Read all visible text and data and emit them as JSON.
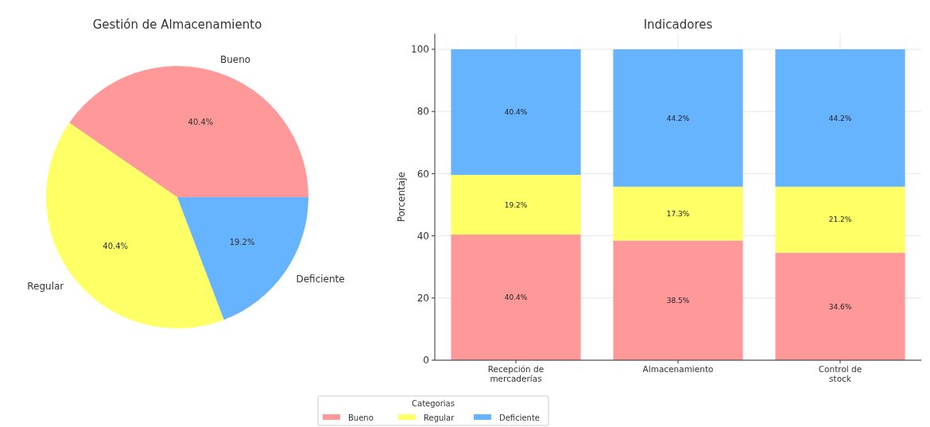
{
  "chart_data": [
    {
      "type": "pie",
      "title": "Gestión de Almacenamiento",
      "categories": [
        "Bueno",
        "Regular",
        "Deficiente"
      ],
      "values": [
        40.4,
        40.4,
        19.2
      ],
      "colors": [
        "#ff9999",
        "#ffff66",
        "#66b3ff"
      ],
      "value_labels": [
        "40.4%",
        "40.4%",
        "19.2%"
      ]
    },
    {
      "type": "bar",
      "title": "Indicadores",
      "ylabel": "Porcentaje",
      "legend_title": "Categorias",
      "legend": "bottom",
      "stacked": true,
      "grid": true,
      "categories": [
        "Recepción de\nmercaderías",
        "Almacenamiento",
        "Control de\nstock"
      ],
      "ylim": [
        0,
        105
      ],
      "yticks": [
        0,
        20,
        40,
        60,
        80,
        100
      ],
      "series": [
        {
          "name": "Bueno",
          "color": "#ff9999",
          "values": [
            40.4,
            38.5,
            34.6
          ],
          "value_labels": [
            "40.4%",
            "38.5%",
            "34.6%"
          ]
        },
        {
          "name": "Regular",
          "color": "#ffff66",
          "values": [
            19.2,
            17.3,
            21.2
          ],
          "value_labels": [
            "19.2%",
            "17.3%",
            "21.2%"
          ]
        },
        {
          "name": "Deficiente",
          "color": "#66b3ff",
          "values": [
            40.4,
            44.2,
            44.2
          ],
          "value_labels": [
            "40.4%",
            "44.2%",
            "44.2%"
          ]
        }
      ]
    }
  ]
}
